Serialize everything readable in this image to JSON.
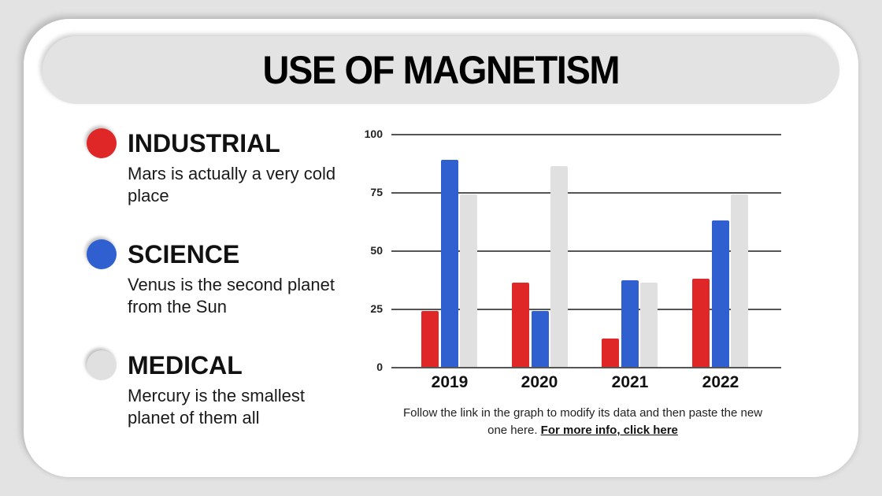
{
  "title": "USE OF MAGNETISM",
  "legend": [
    {
      "label": "INDUSTRIAL",
      "description": "Mars is actually a very cold place",
      "color": "#e02727"
    },
    {
      "label": "SCIENCE",
      "description": "Venus is the second planet from the Sun",
      "color": "#3060d0"
    },
    {
      "label": "MEDICAL",
      "description": "Mercury is the smallest planet of them all",
      "color": "#e0e0e0"
    }
  ],
  "footnote": {
    "text": "Follow the link in the graph to modify its data and then paste the new one here.",
    "link_label": "For more info, click here"
  },
  "chart_data": {
    "type": "bar",
    "title": "USE OF MAGNETISM",
    "categories": [
      "2019",
      "2020",
      "2021",
      "2022"
    ],
    "series": [
      {
        "name": "Industrial",
        "color": "#e02727",
        "values": [
          24,
          36,
          12,
          38
        ]
      },
      {
        "name": "Science",
        "color": "#3060d0",
        "values": [
          89,
          24,
          37,
          63
        ]
      },
      {
        "name": "Medical",
        "color": "#e0e0e0",
        "values": [
          74,
          86,
          36,
          74
        ]
      }
    ],
    "yticks": [
      "0",
      "25",
      "50",
      "75",
      "100"
    ],
    "ylim": [
      0,
      100
    ],
    "xlabel": "",
    "ylabel": "",
    "grid": true,
    "legend_position": "left (external)"
  }
}
